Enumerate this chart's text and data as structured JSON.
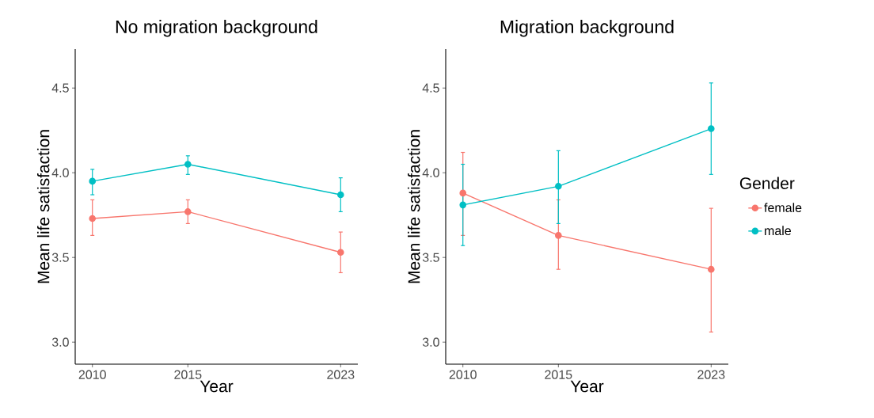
{
  "chart_data": [
    {
      "type": "line",
      "title": "No migration background",
      "xlabel": "Year",
      "ylabel": "Mean life satisfaction",
      "marker": "circle",
      "x": [
        2010,
        2015,
        2023
      ],
      "xlim": [
        2009.1,
        2023.9
      ],
      "xticks": [
        2010,
        2015,
        2023
      ],
      "ylim": [
        2.87,
        4.73
      ],
      "yticks": [
        {
          "value": 3,
          "label": "3.0"
        },
        {
          "value": 3.5,
          "label": "3.5"
        },
        {
          "value": 4,
          "label": "4.0"
        },
        {
          "value": 4.5,
          "label": "4.5"
        }
      ],
      "series": [
        {
          "color": "#f8766d",
          "values": [
            3.73,
            3.77,
            3.53
          ],
          "errors": [
            [
              3.63,
              3.84
            ],
            [
              3.7,
              3.84
            ],
            [
              3.41,
              3.65
            ]
          ]
        },
        {
          "color": "#00bfc4",
          "values": [
            3.95,
            4.05,
            3.87
          ],
          "errors": [
            [
              3.87,
              4.02
            ],
            [
              3.99,
              4.1
            ],
            [
              3.77,
              3.97
            ]
          ]
        }
      ]
    },
    {
      "type": "line",
      "title": "Migration background",
      "xlabel": "Year",
      "ylabel": "Mean life satisfaction",
      "marker": "circle",
      "legend": "right",
      "legend_title": "Gender",
      "x": [
        2010,
        2015,
        2023
      ],
      "xlim": [
        2009.1,
        2023.9
      ],
      "xticks": [
        2010,
        2015,
        2023
      ],
      "ylim": [
        2.87,
        4.73
      ],
      "yticks": [
        {
          "value": 3,
          "label": "3.0"
        },
        {
          "value": 3.5,
          "label": "3.5"
        },
        {
          "value": 4,
          "label": "4.0"
        },
        {
          "value": 4.5,
          "label": "4.5"
        }
      ],
      "series": [
        {
          "name": "female",
          "color": "#f8766d",
          "values": [
            3.88,
            3.63,
            3.43
          ],
          "errors": [
            [
              3.63,
              4.12
            ],
            [
              3.43,
              3.84
            ],
            [
              3.06,
              3.79
            ]
          ]
        },
        {
          "name": "male",
          "color": "#00bfc4",
          "values": [
            3.81,
            3.92,
            4.26
          ],
          "errors": [
            [
              3.57,
              4.05
            ],
            [
              3.7,
              4.13
            ],
            [
              3.99,
              4.53
            ]
          ]
        }
      ]
    }
  ]
}
